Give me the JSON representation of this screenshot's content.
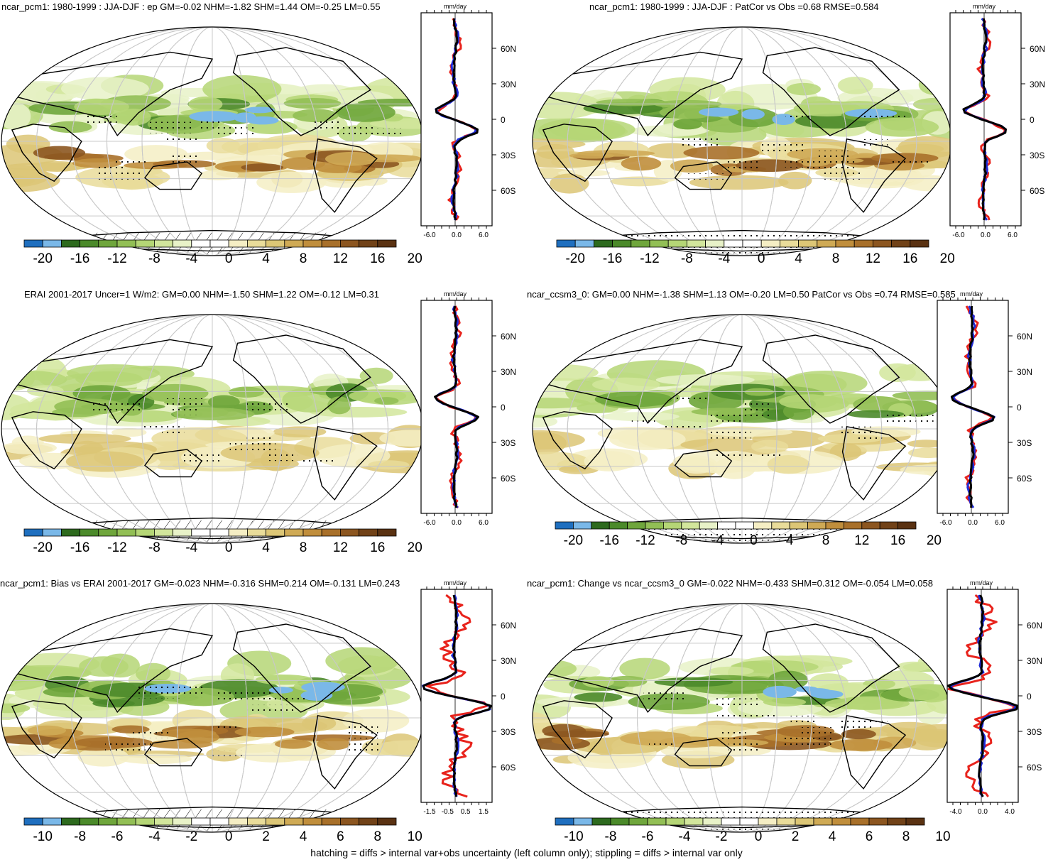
{
  "panels": [
    {
      "title": "ncar_pcm1: 1980-1999 : JJA-DJF : ep GM=-0.02 NHM=-1.82 SHM=1.44 OM=-0.25 LM=0.55",
      "colorbar_labels": [
        "-20",
        "-16",
        "-12",
        "-8",
        "-4",
        "0",
        "4",
        "8",
        "12",
        "16",
        "20"
      ],
      "profile_unit": "mm/day",
      "profile_xticks": [
        "-6.0",
        "0.0",
        "6.0"
      ],
      "lat_labels": [
        "60N",
        "30N",
        "0",
        "30S",
        "60S"
      ],
      "pattern": "field1",
      "south_pattern": "hatch"
    },
    {
      "title": "ncar_pcm1: 1980-1999 : JJA-DJF : PatCor vs Obs =0.68 RMSE=0.584",
      "colorbar_labels": [
        "-20",
        "-16",
        "-12",
        "-8",
        "-4",
        "0",
        "4",
        "8",
        "12",
        "16",
        "20"
      ],
      "profile_unit": "mm/day",
      "profile_xticks": [
        "-6.0",
        "0.0",
        "6.0"
      ],
      "lat_labels": [
        "60N",
        "30N",
        "0",
        "30S",
        "60S"
      ],
      "pattern": "field1",
      "south_pattern": "stipple"
    },
    {
      "title": "ERAI 2001-2017 Uncer=1 W/m2: GM=0.00 NHM=-1.50 SHM=1.22 OM=-0.12 LM=0.31",
      "colorbar_labels": [
        "-20",
        "-16",
        "-12",
        "-8",
        "-4",
        "0",
        "4",
        "8",
        "12",
        "16",
        "20"
      ],
      "profile_unit": "mm/day",
      "profile_xticks": [
        "-6.0",
        "0.0",
        "6.0"
      ],
      "lat_labels": [
        "60N",
        "30N",
        "0",
        "30S",
        "60S"
      ],
      "pattern": "field2",
      "south_pattern": "hatch"
    },
    {
      "title": "ncar_ccsm3_0: GM=0.00 NHM=-1.38 SHM=1.13 OM=-0.20 LM=0.50 PatCor vs Obs =0.74 RMSE=0.585",
      "colorbar_labels": [
        "-20",
        "-16",
        "-12",
        "-8",
        "-4",
        "0",
        "4",
        "8",
        "12",
        "16",
        "20"
      ],
      "profile_unit": "mm/day",
      "profile_xticks": [
        "-6.0",
        "0.0",
        "6.0"
      ],
      "lat_labels": [
        "60N",
        "30N",
        "0",
        "30S",
        "60S"
      ],
      "pattern": "field2",
      "south_pattern": "stipple"
    },
    {
      "title": "ncar_pcm1: Bias vs ERAI 2001-2017 GM=-0.023 NHM=-0.316 SHM=0.214 OM=-0.131 LM=0.243",
      "colorbar_labels": [
        "-10",
        "-8",
        "-6",
        "-4",
        "-2",
        "0",
        "2",
        "4",
        "6",
        "8",
        "10"
      ],
      "profile_unit": "mm/day",
      "profile_xticks": [
        "-1.5",
        "-0.5",
        "0.5",
        "1.5"
      ],
      "lat_labels": [
        "60N",
        "30N",
        "0",
        "30S",
        "60S"
      ],
      "pattern": "field3",
      "south_pattern": "hatch"
    },
    {
      "title": "ncar_pcm1: Change vs ncar_ccsm3_0 GM=-0.022 NHM=-0.433 SHM=0.312 OM=-0.054 LM=0.058",
      "colorbar_labels": [
        "-10",
        "-8",
        "-6",
        "-4",
        "-2",
        "0",
        "2",
        "4",
        "6",
        "8",
        "10"
      ],
      "profile_unit": "mm/day",
      "profile_xticks": [
        "-4.0",
        "0.0",
        "4.0"
      ],
      "lat_labels": [
        "60N",
        "30N",
        "0",
        "30S",
        "60S"
      ],
      "pattern": "field3",
      "south_pattern": "stipple"
    }
  ],
  "colorbar_colors": [
    "#1f6fbf",
    "#7ab8e8",
    "#2d6a1e",
    "#4b8a2a",
    "#6fa63c",
    "#92bf55",
    "#b5d676",
    "#d2e69c",
    "#e8f2c8",
    "#ffffff",
    "#ffffff",
    "#f5eec4",
    "#e9dc9a",
    "#dcc676",
    "#cfaa55",
    "#c08e3c",
    "#a8702a",
    "#8c5620",
    "#714218",
    "#5a3212"
  ],
  "footer": "hatching = diffs > internal var+obs uncertainty (left column only); stippling = diffs > internal var only"
}
